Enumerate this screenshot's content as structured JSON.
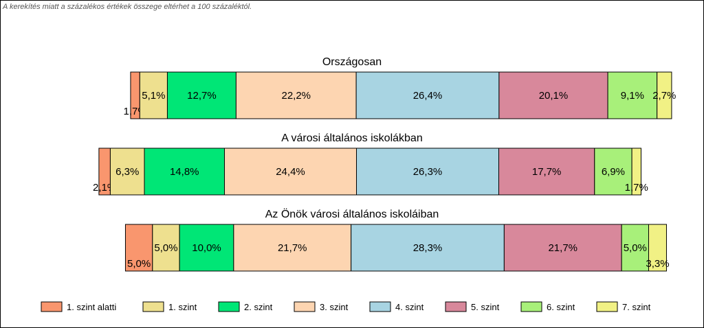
{
  "note": "A kerekítés miatt a  százalékos értékek összege eltérhet a 100 százaléktól.",
  "chart_data": {
    "type": "bar",
    "orientation": "horizontal",
    "stacked": true,
    "centered_on": "4. szint",
    "legend_position": "bottom",
    "categories": [
      "1. szint alatti",
      "1. szint",
      "2. szint",
      "3. szint",
      "4. szint",
      "5. szint",
      "6. szint",
      "7. szint"
    ],
    "colors": [
      "#F9966E",
      "#EEE08F",
      "#00E676",
      "#FDD5B1",
      "#A8D4E2",
      "#D8889B",
      "#A8F07A",
      "#F1F185"
    ],
    "bars": [
      {
        "title": "Országosan",
        "values": [
          1.7,
          5.1,
          12.7,
          22.2,
          26.4,
          20.1,
          9.1,
          2.7
        ],
        "labels": [
          "1,7%",
          "5,1%",
          "12,7%",
          "22,2%",
          "26,4%",
          "20,1%",
          "9,1%",
          "2,7%"
        ]
      },
      {
        "title": "A városi általános iskolákban",
        "values": [
          2.1,
          6.3,
          14.8,
          24.4,
          26.3,
          17.7,
          6.9,
          1.7
        ],
        "labels": [
          "2,1%",
          "6,3%",
          "14,8%",
          "24,4%",
          "26,3%",
          "17,7%",
          "6,9%",
          "1,7%"
        ]
      },
      {
        "title": "Az Önök városi általános iskoláiban",
        "values": [
          5.0,
          5.0,
          10.0,
          21.7,
          28.3,
          21.7,
          5.0,
          3.3
        ],
        "labels": [
          "5,0%",
          "5,0%",
          "10,0%",
          "21,7%",
          "28,3%",
          "21,7%",
          "5,0%",
          "3,3%"
        ]
      }
    ]
  }
}
